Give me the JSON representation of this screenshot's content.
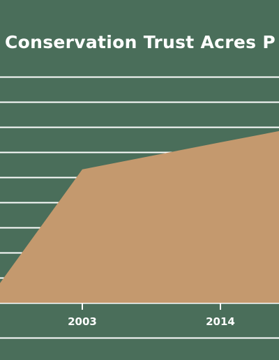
{
  "colors": {
    "background": "#4a6e5a",
    "area_fill": "#c4996e",
    "gridline": "#ffffff",
    "text": "#ffffff"
  },
  "chart_data": {
    "type": "area",
    "title": "Conservation Trust Acres P",
    "xlabel": "",
    "ylabel": "",
    "x_ticks": [
      2003,
      2014
    ],
    "grid": true,
    "legend": "none",
    "series": [
      {
        "x": [
          1996.4,
          2003,
          2014,
          2018.7
        ],
        "y": [
          8.4,
          59,
          71,
          76
        ]
      }
    ],
    "ylim": [
      0,
      100
    ]
  }
}
